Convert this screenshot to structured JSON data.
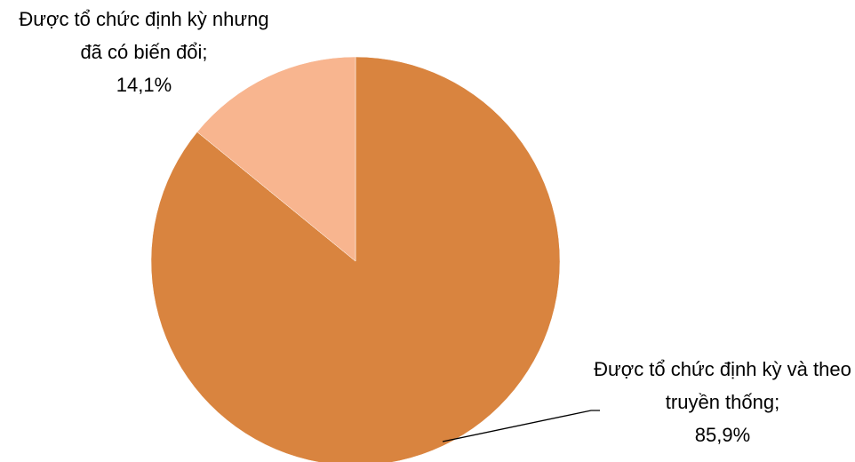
{
  "chart_data": {
    "type": "pie",
    "categories": [
      "Được tổ chức định kỳ và theo truyền thống;",
      "Được tổ chức định kỳ nhưng đã có biến đổi;"
    ],
    "values": [
      85.9,
      14.1
    ],
    "value_labels": [
      "85,9%",
      "14,1%"
    ],
    "colors": [
      "#D9843F",
      "#F8B58F"
    ]
  }
}
